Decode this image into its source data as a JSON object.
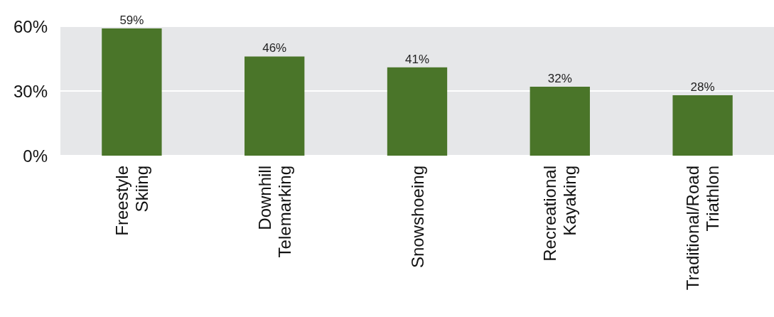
{
  "chart_data": {
    "type": "bar",
    "categories": [
      "Freestyle Skiing",
      "Downhill Telemarking",
      "Snowshoeing",
      "Recreational Kayaking",
      "Traditional/Road Triathlon"
    ],
    "values": [
      59,
      46,
      41,
      32,
      28
    ],
    "value_labels": [
      "59%",
      "46%",
      "41%",
      "32%",
      "28%"
    ],
    "color": "#4a7529",
    "ylim": [
      0,
      60
    ],
    "yticks": [
      {
        "value": 0,
        "label": "0%"
      },
      {
        "value": 30,
        "label": "30%"
      },
      {
        "value": 60,
        "label": "60%"
      }
    ],
    "grid": "y"
  }
}
